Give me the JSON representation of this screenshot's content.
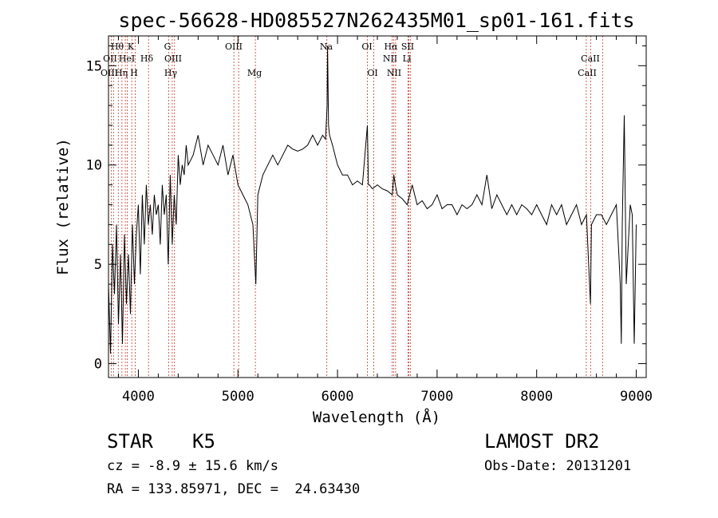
{
  "chart_data": {
    "type": "line",
    "title": "spec-56628-HD085527N262435M01_sp01-161.fits",
    "xlabel": "Wavelength (Å)",
    "ylabel": "Flux (relative)",
    "xlim": [
      3700,
      9100
    ],
    "ylim": [
      -0.7,
      16.5
    ],
    "xticks": [
      4000,
      5000,
      6000,
      7000,
      8000,
      9000
    ],
    "yticks": [
      0,
      5,
      10,
      15
    ],
    "grid": false,
    "series": [
      {
        "x": [
          3700,
          3720,
          3740,
          3760,
          3780,
          3800,
          3820,
          3840,
          3860,
          3880,
          3900,
          3920,
          3940,
          3960,
          3980,
          4000,
          4020,
          4040,
          4060,
          4080,
          4100,
          4120,
          4140,
          4160,
          4180,
          4200,
          4220,
          4240,
          4260,
          4280,
          4300,
          4320,
          4340,
          4360,
          4380,
          4400,
          4420,
          4440,
          4460,
          4480,
          4500,
          4550,
          4600,
          4650,
          4700,
          4750,
          4800,
          4850,
          4900,
          4950,
          5000,
          5050,
          5100,
          5150,
          5180,
          5200,
          5250,
          5300,
          5350,
          5400,
          5450,
          5500,
          5550,
          5600,
          5650,
          5700,
          5750,
          5800,
          5850,
          5880,
          5895,
          5900,
          5910,
          5920,
          5950,
          6000,
          6050,
          6100,
          6150,
          6200,
          6250,
          6300,
          6310,
          6320,
          6350,
          6400,
          6450,
          6500,
          6550,
          6565,
          6580,
          6600,
          6650,
          6700,
          6750,
          6800,
          6850,
          6900,
          6950,
          7000,
          7050,
          7100,
          7150,
          7200,
          7250,
          7300,
          7350,
          7400,
          7450,
          7500,
          7550,
          7600,
          7650,
          7700,
          7750,
          7800,
          7850,
          7900,
          7950,
          8000,
          8050,
          8100,
          8150,
          8200,
          8250,
          8300,
          8350,
          8400,
          8450,
          8500,
          8540,
          8550,
          8600,
          8650,
          8700,
          8750,
          8800,
          8820,
          8840,
          8850,
          8860,
          8880,
          8900,
          8920,
          8940,
          8960,
          8980,
          9000
        ],
        "y": [
          4.0,
          0.5,
          6.0,
          3.5,
          7.0,
          2.0,
          5.5,
          1.0,
          6.5,
          3.0,
          5.5,
          2.5,
          7.0,
          4.0,
          6.5,
          8.0,
          4.5,
          8.5,
          6.0,
          9.0,
          7.0,
          8.0,
          6.5,
          8.5,
          7.5,
          8.0,
          6.0,
          9.0,
          7.5,
          8.5,
          5.0,
          9.5,
          6.0,
          8.5,
          7.0,
          10.5,
          9.0,
          10.0,
          9.5,
          11.0,
          10.0,
          10.5,
          11.5,
          10.0,
          11.0,
          10.5,
          10.0,
          11.0,
          9.5,
          10.5,
          9.0,
          8.5,
          8.0,
          7.0,
          4.0,
          8.5,
          9.5,
          10.0,
          10.5,
          10.0,
          10.5,
          11.0,
          10.8,
          10.7,
          10.8,
          11.0,
          11.5,
          11.0,
          11.5,
          11.3,
          13.0,
          16.0,
          12.0,
          11.5,
          11.0,
          10.0,
          9.5,
          9.5,
          9.0,
          9.2,
          9.0,
          12.0,
          9.0,
          9.0,
          8.8,
          9.0,
          8.8,
          8.7,
          8.5,
          9.5,
          9.0,
          8.5,
          8.3,
          8.0,
          9.0,
          8.0,
          8.2,
          7.8,
          8.0,
          8.5,
          7.8,
          8.0,
          8.0,
          7.5,
          8.0,
          7.8,
          8.0,
          8.5,
          8.0,
          9.5,
          7.8,
          8.5,
          8.0,
          7.5,
          8.0,
          7.5,
          8.0,
          7.8,
          7.5,
          8.0,
          7.5,
          7.0,
          8.0,
          7.5,
          8.0,
          7.0,
          7.5,
          8.0,
          7.0,
          7.5,
          3.0,
          7.0,
          7.5,
          7.5,
          7.0,
          7.5,
          8.0,
          6.0,
          4.0,
          1.0,
          7.0,
          12.5,
          4.0,
          6.0,
          8.0,
          7.5,
          1.0,
          7.0
        ]
      }
    ],
    "lines": {
      "row1": [
        "Hθ",
        "K",
        "G",
        "OIII",
        "Na",
        "OI",
        "Hα",
        "SII"
      ],
      "row2": [
        "OII",
        "HeI",
        "Hδ",
        "OIII",
        "NII",
        "Li",
        "CaII"
      ],
      "row3": [
        "OIII",
        "Hη",
        "H",
        "Hγ",
        "Mg",
        "OI",
        "NII",
        "CaII"
      ]
    }
  },
  "footer": {
    "class_label": "STAR",
    "subclass": "K5",
    "survey": "LAMOST DR2",
    "cz": "cz = -8.9 ± 15.6 km/s",
    "obs_date": "Obs-Date: 20131201",
    "coords": "RA = 133.85971, DEC =  24.63430"
  }
}
